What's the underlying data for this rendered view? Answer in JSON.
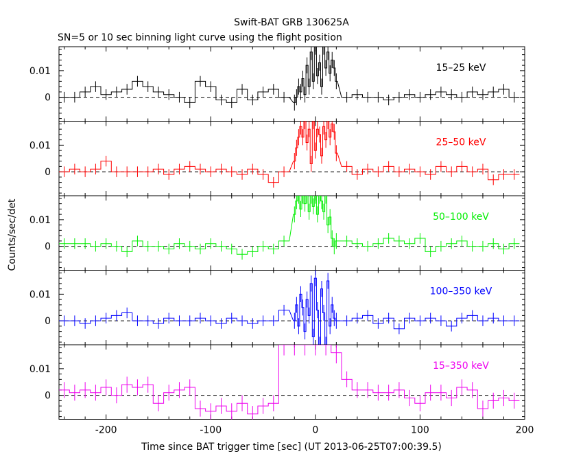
{
  "title": "Swift-BAT GRB 130625A",
  "subtitle": "SN=5 or 10 sec binning light curve using the flight position",
  "ylabel": "Counts/sec/det",
  "xlabel": "Time since BAT trigger time [sec] (UT 2013-06-25T07:00:39.5)",
  "chart_data": {
    "type": "line",
    "title": "Swift-BAT GRB 130625A",
    "subtitle": "SN=5 or 10 sec binning light curve using the flight position",
    "xlabel": "Time since BAT trigger time [sec] (UT 2013-06-25T07:00:39.5)",
    "ylabel": "Counts/sec/det",
    "xlim": [
      -245,
      200
    ],
    "ylim": [
      -0.009,
      0.019
    ],
    "x_ticks": [
      "-200",
      "-100",
      "0",
      "100",
      "200"
    ],
    "x_tick_values": [
      -200,
      -100,
      0,
      100,
      200
    ],
    "y_ticks": [
      "0",
      "0.01"
    ],
    "y_tick_values": [
      0,
      0.01
    ],
    "zero_line": "dashed",
    "series": [
      {
        "name": "15–25 keV",
        "color": "#000000",
        "x": [
          -240,
          -230,
          -220,
          -210,
          -200,
          -190,
          -180,
          -170,
          -160,
          -150,
          -140,
          -130,
          -120,
          -110,
          -100,
          -90,
          -80,
          -70,
          -60,
          -50,
          -40,
          -30,
          -20,
          -18,
          -16,
          -14,
          -12,
          -10,
          -8,
          -6,
          -4,
          -2,
          0,
          2,
          4,
          6,
          8,
          10,
          12,
          14,
          16,
          18,
          20,
          30,
          40,
          50,
          60,
          70,
          80,
          90,
          100,
          110,
          120,
          130,
          140,
          150,
          160,
          170,
          180,
          190
        ],
        "y": [
          0.0,
          0.0,
          0.002,
          0.004,
          0.001,
          0.002,
          0.003,
          0.006,
          0.004,
          0.002,
          0.001,
          0.0,
          -0.002,
          0.006,
          0.004,
          -0.001,
          -0.002,
          0.003,
          -0.001,
          0.002,
          0.003,
          0.0,
          -0.002,
          0.0,
          0.004,
          0.002,
          0.007,
          0.001,
          0.012,
          0.004,
          0.017,
          0.006,
          0.019,
          0.008,
          0.013,
          0.004,
          0.019,
          0.011,
          0.017,
          0.009,
          0.014,
          0.011,
          0.006,
          0.0,
          0.001,
          0.0,
          0.0,
          -0.001,
          0.0,
          0.001,
          0.0,
          0.001,
          0.002,
          0.001,
          0.0,
          0.002,
          0.001,
          0.002,
          0.003,
          0.0
        ],
        "yerr": [
          0.002,
          0.002,
          0.002,
          0.002,
          0.002,
          0.002,
          0.002,
          0.002,
          0.002,
          0.002,
          0.002,
          0.002,
          0.002,
          0.002,
          0.002,
          0.002,
          0.002,
          0.002,
          0.002,
          0.002,
          0.002,
          0.002,
          0.003,
          0.003,
          0.003,
          0.003,
          0.003,
          0.003,
          0.003,
          0.003,
          0.003,
          0.003,
          0.003,
          0.003,
          0.003,
          0.003,
          0.003,
          0.003,
          0.003,
          0.003,
          0.003,
          0.003,
          0.003,
          0.002,
          0.002,
          0.002,
          0.002,
          0.002,
          0.002,
          0.002,
          0.002,
          0.002,
          0.002,
          0.002,
          0.002,
          0.002,
          0.002,
          0.002,
          0.002,
          0.002
        ]
      },
      {
        "name": "25–50 keV",
        "color": "#ff0000",
        "x": [
          -240,
          -230,
          -220,
          -210,
          -200,
          -190,
          -180,
          -170,
          -160,
          -150,
          -140,
          -130,
          -120,
          -110,
          -100,
          -90,
          -80,
          -70,
          -60,
          -50,
          -40,
          -30,
          -20,
          -18,
          -16,
          -14,
          -12,
          -10,
          -8,
          -6,
          -4,
          -2,
          0,
          2,
          4,
          6,
          8,
          10,
          12,
          14,
          16,
          18,
          20,
          30,
          40,
          50,
          60,
          70,
          80,
          90,
          100,
          110,
          120,
          130,
          140,
          150,
          160,
          170,
          180,
          190
        ],
        "y": [
          0.0,
          0.001,
          0.0,
          0.001,
          0.004,
          0.0,
          0.0,
          0.0,
          0.0,
          0.001,
          -0.001,
          0.001,
          0.002,
          0.001,
          0.0,
          0.001,
          0.0,
          -0.001,
          0.001,
          -0.001,
          -0.004,
          0.0,
          0.004,
          0.009,
          0.013,
          0.017,
          0.013,
          0.019,
          0.011,
          0.016,
          0.003,
          0.019,
          0.008,
          0.016,
          0.014,
          0.006,
          0.017,
          0.012,
          0.019,
          0.013,
          0.018,
          0.015,
          0.007,
          0.002,
          -0.001,
          0.001,
          0.0,
          0.002,
          0.0,
          0.001,
          0.0,
          -0.001,
          0.002,
          0.0,
          0.002,
          0.0,
          0.001,
          -0.003,
          -0.001,
          -0.001
        ],
        "yerr": [
          0.002,
          0.002,
          0.002,
          0.002,
          0.002,
          0.002,
          0.002,
          0.002,
          0.002,
          0.002,
          0.002,
          0.002,
          0.002,
          0.002,
          0.002,
          0.002,
          0.002,
          0.002,
          0.002,
          0.002,
          0.002,
          0.002,
          0.003,
          0.003,
          0.003,
          0.003,
          0.003,
          0.003,
          0.003,
          0.003,
          0.003,
          0.003,
          0.003,
          0.003,
          0.003,
          0.003,
          0.003,
          0.003,
          0.003,
          0.003,
          0.003,
          0.003,
          0.003,
          0.002,
          0.002,
          0.002,
          0.002,
          0.002,
          0.002,
          0.002,
          0.002,
          0.002,
          0.002,
          0.002,
          0.002,
          0.002,
          0.002,
          0.002,
          0.002,
          0.002
        ]
      },
      {
        "name": "50–100 keV",
        "color": "#00ee00",
        "x": [
          -240,
          -230,
          -220,
          -210,
          -200,
          -190,
          -180,
          -170,
          -160,
          -150,
          -140,
          -130,
          -120,
          -110,
          -100,
          -90,
          -80,
          -70,
          -60,
          -50,
          -40,
          -30,
          -20,
          -18,
          -16,
          -14,
          -12,
          -10,
          -8,
          -6,
          -4,
          -2,
          0,
          2,
          4,
          6,
          8,
          10,
          12,
          14,
          16,
          18,
          20,
          30,
          40,
          50,
          60,
          70,
          80,
          90,
          100,
          110,
          120,
          130,
          140,
          150,
          160,
          170,
          180,
          190
        ],
        "y": [
          0.001,
          0.001,
          0.001,
          0.0,
          0.001,
          0.0,
          -0.002,
          0.002,
          0.0,
          0.0,
          -0.001,
          0.001,
          0.0,
          -0.001,
          0.001,
          0.0,
          -0.001,
          -0.003,
          -0.002,
          0.0,
          -0.001,
          0.002,
          0.012,
          0.017,
          0.019,
          0.014,
          0.019,
          0.016,
          0.019,
          0.013,
          0.019,
          0.015,
          0.019,
          0.012,
          0.019,
          0.017,
          0.013,
          0.019,
          0.008,
          0.011,
          0.003,
          0.0,
          0.002,
          0.002,
          0.001,
          0.0,
          0.001,
          0.003,
          0.002,
          0.001,
          0.003,
          -0.002,
          0.0,
          0.001,
          0.002,
          0.0,
          0.0,
          0.001,
          -0.001,
          0.001
        ],
        "yerr": [
          0.002,
          0.002,
          0.002,
          0.002,
          0.002,
          0.002,
          0.002,
          0.002,
          0.002,
          0.002,
          0.002,
          0.002,
          0.002,
          0.002,
          0.002,
          0.002,
          0.002,
          0.002,
          0.002,
          0.002,
          0.002,
          0.002,
          0.003,
          0.003,
          0.003,
          0.003,
          0.003,
          0.003,
          0.003,
          0.003,
          0.003,
          0.003,
          0.003,
          0.003,
          0.003,
          0.003,
          0.003,
          0.003,
          0.003,
          0.003,
          0.003,
          0.003,
          0.003,
          0.002,
          0.002,
          0.002,
          0.002,
          0.002,
          0.002,
          0.002,
          0.002,
          0.002,
          0.002,
          0.002,
          0.002,
          0.002,
          0.002,
          0.002,
          0.002,
          0.002
        ]
      },
      {
        "name": "100–350 keV",
        "color": "#0000ff",
        "x": [
          -240,
          -230,
          -220,
          -210,
          -200,
          -190,
          -180,
          -170,
          -160,
          -150,
          -140,
          -130,
          -120,
          -110,
          -100,
          -90,
          -80,
          -70,
          -60,
          -50,
          -40,
          -30,
          -20,
          -18,
          -16,
          -14,
          -12,
          -10,
          -8,
          -6,
          -4,
          -2,
          0,
          2,
          4,
          6,
          8,
          10,
          12,
          14,
          16,
          18,
          20,
          30,
          40,
          50,
          60,
          70,
          80,
          90,
          100,
          110,
          120,
          130,
          140,
          150,
          160,
          170,
          180,
          190
        ],
        "y": [
          0.0,
          0.0,
          -0.001,
          0.0,
          0.001,
          0.002,
          0.003,
          0.0,
          0.0,
          -0.001,
          0.001,
          0.0,
          0.0,
          0.001,
          0.0,
          -0.001,
          0.001,
          0.0,
          -0.001,
          0.0,
          0.0,
          0.004,
          0.0,
          0.006,
          -0.002,
          0.01,
          0.005,
          -0.004,
          0.008,
          0.002,
          0.014,
          -0.006,
          0.016,
          0.004,
          -0.009,
          0.012,
          0.003,
          -0.009,
          0.015,
          -0.002,
          0.006,
          0.001,
          0.0,
          0.0,
          0.001,
          0.002,
          -0.001,
          0.001,
          -0.003,
          0.001,
          0.0,
          0.001,
          0.0,
          -0.002,
          0.001,
          0.002,
          0.0,
          0.001,
          0.0,
          0.0
        ],
        "yerr": [
          0.002,
          0.002,
          0.002,
          0.002,
          0.002,
          0.002,
          0.002,
          0.002,
          0.002,
          0.002,
          0.002,
          0.002,
          0.002,
          0.002,
          0.002,
          0.002,
          0.002,
          0.002,
          0.002,
          0.002,
          0.002,
          0.002,
          0.003,
          0.003,
          0.003,
          0.003,
          0.003,
          0.003,
          0.003,
          0.003,
          0.003,
          0.003,
          0.003,
          0.003,
          0.003,
          0.003,
          0.003,
          0.003,
          0.003,
          0.003,
          0.003,
          0.003,
          0.003,
          0.002,
          0.002,
          0.002,
          0.002,
          0.002,
          0.002,
          0.002,
          0.002,
          0.002,
          0.002,
          0.002,
          0.002,
          0.002,
          0.002,
          0.002,
          0.002,
          0.002
        ]
      },
      {
        "name": "15–350 keV",
        "color": "#ee00ee",
        "x": [
          -240,
          -230,
          -220,
          -210,
          -200,
          -190,
          -180,
          -170,
          -160,
          -150,
          -140,
          -130,
          -120,
          -110,
          -100,
          -90,
          -80,
          -70,
          -60,
          -50,
          -40,
          -30,
          -20,
          -10,
          0,
          10,
          20,
          30,
          40,
          50,
          60,
          70,
          80,
          90,
          100,
          110,
          120,
          130,
          140,
          150,
          160,
          170,
          180,
          190
        ],
        "y": [
          0.002,
          0.001,
          0.002,
          0.001,
          0.003,
          0.0,
          0.004,
          0.003,
          0.004,
          -0.003,
          0.001,
          0.002,
          0.003,
          -0.005,
          -0.006,
          -0.004,
          -0.006,
          -0.003,
          -0.007,
          -0.004,
          -0.003,
          0.019,
          0.019,
          0.019,
          0.019,
          0.019,
          0.016,
          0.006,
          0.002,
          0.002,
          0.001,
          0.001,
          0.002,
          -0.001,
          -0.003,
          0.001,
          0.001,
          -0.001,
          0.003,
          0.002,
          -0.005,
          -0.002,
          -0.001,
          -0.002
        ],
        "yerr": [
          0.003,
          0.003,
          0.003,
          0.003,
          0.003,
          0.003,
          0.003,
          0.003,
          0.003,
          0.003,
          0.003,
          0.003,
          0.003,
          0.003,
          0.003,
          0.003,
          0.003,
          0.003,
          0.003,
          0.003,
          0.003,
          0.004,
          0.004,
          0.004,
          0.004,
          0.004,
          0.004,
          0.003,
          0.003,
          0.003,
          0.003,
          0.003,
          0.003,
          0.003,
          0.003,
          0.003,
          0.003,
          0.003,
          0.003,
          0.003,
          0.003,
          0.003,
          0.003,
          0.003
        ]
      }
    ]
  }
}
